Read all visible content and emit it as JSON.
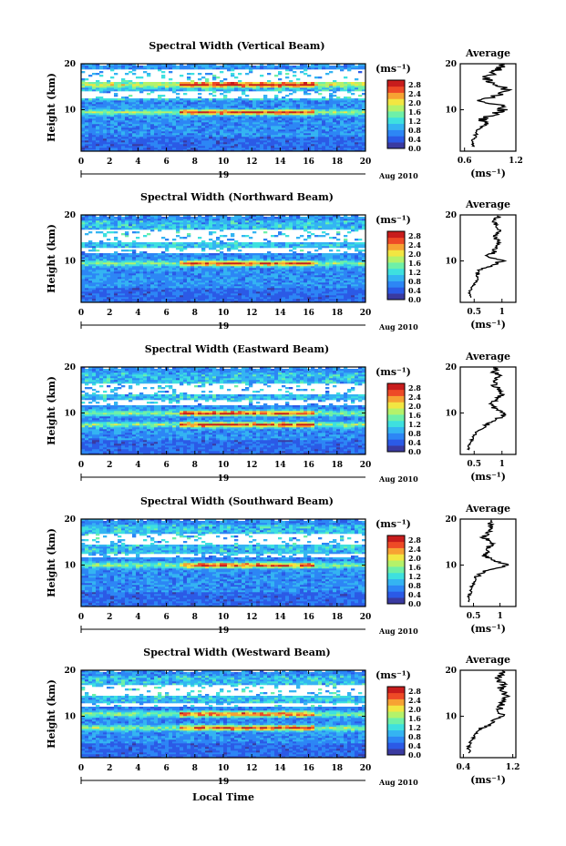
{
  "figure": {
    "xlabel": "Local Time",
    "date_day": "19",
    "date_month_year": "Aug 2010",
    "colorbar_unit": "(ms⁻¹)",
    "colorbar_ticks": [
      "0.0",
      "0.4",
      "0.8",
      "1.2",
      "1.6",
      "2.0",
      "2.4",
      "2.8"
    ],
    "colormap": [
      "#3a3aa0",
      "#2b5ae6",
      "#2d86f5",
      "#34b4f2",
      "#3ee0df",
      "#6ef0a8",
      "#b4f26a",
      "#f2e642",
      "#f7a233",
      "#ee4a26",
      "#c81c1c"
    ],
    "average_title": "Average",
    "average_xlabel": "(ms⁻¹)"
  },
  "chart_data": [
    {
      "type": "heatmap",
      "title": "Spectral Width (Vertical Beam)",
      "xlabel": "",
      "ylabel": "Height (km)",
      "xlim": [
        0,
        20
      ],
      "ylim": [
        1,
        20
      ],
      "xticks": [
        0,
        2,
        4,
        6,
        8,
        10,
        12,
        14,
        16,
        18,
        20
      ],
      "yticks": [
        10,
        20
      ],
      "colorbar_range": [
        0.0,
        3.0
      ],
      "gaps_km": [
        [
          16.0,
          18.8
        ],
        [
          12.5,
          14.0
        ]
      ],
      "hot_layers_km": [
        9.5,
        15.5
      ],
      "average": {
        "xlim": [
          0.55,
          1.2
        ],
        "xticks": [
          0.6,
          1.2
        ],
        "ylim": [
          1,
          20
        ],
        "heights": [
          2,
          3,
          4,
          5,
          6,
          7,
          8,
          9,
          10,
          11,
          12,
          13,
          14,
          15,
          16,
          17,
          18,
          19,
          20
        ],
        "values": [
          0.72,
          0.7,
          0.72,
          0.74,
          0.78,
          0.86,
          0.8,
          0.95,
          1.05,
          1.0,
          0.8,
          0.95,
          1.1,
          1.05,
          0.9,
          0.85,
          0.95,
          1.0,
          1.05
        ]
      }
    },
    {
      "type": "heatmap",
      "title": "Spectral Width (Northward Beam)",
      "xlabel": "",
      "ylabel": "Height (km)",
      "xlim": [
        0,
        20
      ],
      "ylim": [
        1,
        20
      ],
      "xticks": [
        0,
        2,
        4,
        6,
        8,
        10,
        12,
        14,
        16,
        18,
        20
      ],
      "yticks": [
        10,
        20
      ],
      "colorbar_range": [
        0.0,
        3.0
      ],
      "gaps_km": [
        [
          14.2,
          17.0
        ],
        [
          11.5,
          13.0
        ]
      ],
      "hot_layers_km": [
        9.5
      ],
      "average": {
        "xlim": [
          0.25,
          1.25
        ],
        "xticks": [
          0.5,
          1.0
        ],
        "ylim": [
          1,
          20
        ],
        "heights": [
          2,
          3,
          4,
          5,
          6,
          7,
          8,
          9,
          10,
          11,
          12,
          13,
          14,
          15,
          16,
          17,
          18,
          19,
          20
        ],
        "values": [
          0.45,
          0.4,
          0.45,
          0.5,
          0.55,
          0.55,
          0.6,
          0.8,
          1.0,
          0.75,
          0.85,
          0.9,
          0.95,
          0.85,
          0.9,
          0.95,
          0.85,
          0.9,
          0.95
        ]
      }
    },
    {
      "type": "heatmap",
      "title": "Spectral Width (Eastward Beam)",
      "xlabel": "",
      "ylabel": "Height (km)",
      "xlim": [
        0,
        20
      ],
      "ylim": [
        1,
        20
      ],
      "xticks": [
        0,
        2,
        4,
        6,
        8,
        10,
        12,
        14,
        16,
        18,
        20
      ],
      "yticks": [
        10,
        20
      ],
      "colorbar_range": [
        0.0,
        3.0
      ],
      "gaps_km": [
        [
          14.0,
          16.5
        ],
        [
          11.8,
          13.0
        ]
      ],
      "hot_layers_km": [
        7.5,
        10.0
      ],
      "average": {
        "xlim": [
          0.25,
          1.25
        ],
        "xticks": [
          0.5,
          1.0
        ],
        "ylim": [
          1,
          20
        ],
        "heights": [
          2,
          3,
          4,
          5,
          6,
          7,
          8,
          9,
          10,
          11,
          12,
          13,
          14,
          15,
          16,
          17,
          18,
          19,
          20
        ],
        "values": [
          0.4,
          0.4,
          0.45,
          0.5,
          0.55,
          0.7,
          0.8,
          0.95,
          1.05,
          0.85,
          0.8,
          0.9,
          1.0,
          0.95,
          0.85,
          0.9,
          0.95,
          0.85,
          0.9
        ]
      }
    },
    {
      "type": "heatmap",
      "title": "Spectral Width (Southward Beam)",
      "xlabel": "",
      "ylabel": "Height (km)",
      "xlim": [
        0,
        20
      ],
      "ylim": [
        1,
        20
      ],
      "xticks": [
        0,
        2,
        4,
        6,
        8,
        10,
        12,
        14,
        16,
        18,
        20
      ],
      "yticks": [
        10,
        20
      ],
      "colorbar_range": [
        0.0,
        3.0
      ],
      "gaps_km": [
        [
          14.5,
          17.0
        ],
        [
          11.8,
          12.6
        ]
      ],
      "hot_layers_km": [
        10.0
      ],
      "average": {
        "xlim": [
          0.25,
          1.3
        ],
        "xticks": [
          0.5,
          1.0
        ],
        "ylim": [
          1,
          20
        ],
        "heights": [
          2,
          3,
          4,
          5,
          6,
          7,
          8,
          9,
          10,
          11,
          12,
          13,
          14,
          15,
          16,
          17,
          18,
          19,
          20
        ],
        "values": [
          0.4,
          0.4,
          0.45,
          0.45,
          0.5,
          0.55,
          0.6,
          0.8,
          1.15,
          0.9,
          0.7,
          0.75,
          0.8,
          0.85,
          0.7,
          0.75,
          0.85,
          0.8,
          0.85
        ]
      }
    },
    {
      "type": "heatmap",
      "title": "Spectral Width (Westward Beam)",
      "xlabel": "Local Time",
      "ylabel": "Height (km)",
      "xlim": [
        0,
        20
      ],
      "ylim": [
        1,
        20
      ],
      "xticks": [
        0,
        2,
        4,
        6,
        8,
        10,
        12,
        14,
        16,
        18,
        20
      ],
      "yticks": [
        10,
        20
      ],
      "colorbar_range": [
        0.0,
        3.0
      ],
      "gaps_km": [
        [
          14.5,
          17.0
        ],
        [
          12.0,
          13.0
        ]
      ],
      "hot_layers_km": [
        7.5,
        10.5
      ],
      "average": {
        "xlim": [
          0.35,
          1.25
        ],
        "xticks": [
          0.4,
          1.2
        ],
        "ylim": [
          1,
          20
        ],
        "heights": [
          2,
          3,
          4,
          5,
          6,
          7,
          8,
          9,
          10,
          11,
          12,
          13,
          14,
          15,
          16,
          17,
          18,
          19,
          20
        ],
        "values": [
          0.5,
          0.48,
          0.5,
          0.55,
          0.6,
          0.65,
          0.8,
          0.9,
          1.05,
          0.95,
          1.0,
          1.05,
          1.1,
          1.05,
          1.0,
          1.05,
          0.95,
          1.0,
          1.05
        ]
      }
    }
  ]
}
